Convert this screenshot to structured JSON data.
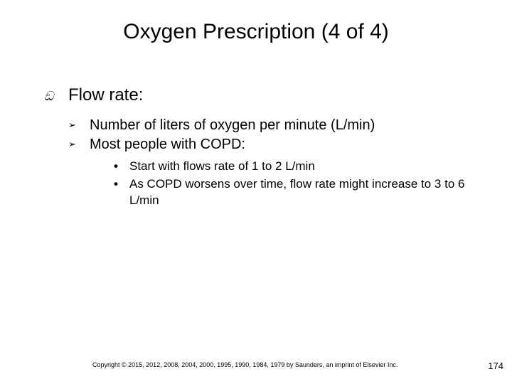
{
  "title": "Oxygen Prescription (4 of 4)",
  "level1": {
    "bullet": "ඞ",
    "text": "Flow rate:"
  },
  "level2": [
    {
      "bullet": "➢",
      "text": "Number of liters of oxygen per minute (L/min)"
    },
    {
      "bullet": "➢",
      "text": "Most people with COPD:"
    }
  ],
  "level3": [
    {
      "bullet": "•",
      "text": "Start with flows rate of 1 to 2 L/min"
    },
    {
      "bullet": "•",
      "text": "As COPD worsens over time, flow rate might increase to 3 to 6 L/min"
    }
  ],
  "copyright": "Copyright © 2015, 2012, 2008, 2004, 2000, 1995, 1990, 1984, 1979 by Saunders, an imprint of Elsevier Inc.",
  "page_number": "174",
  "colors": {
    "background": "#ffffff",
    "text": "#000000"
  }
}
